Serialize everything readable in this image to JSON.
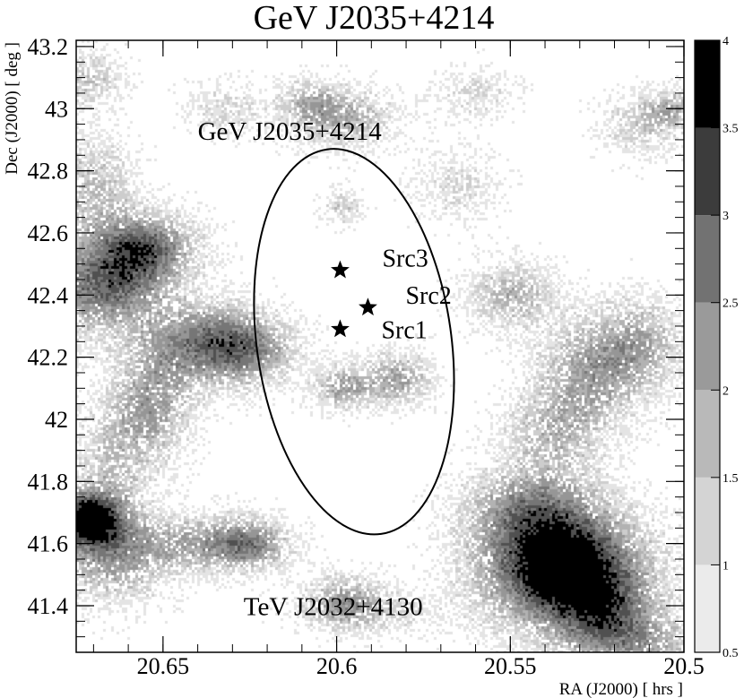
{
  "chart_data": {
    "type": "heatmap",
    "title": "GeV J2035+4214",
    "xlabel": "RA (J2000) [ hrs ]",
    "ylabel": "Dec (J2000) [ deg ]",
    "xlim": [
      20.675,
      20.5
    ],
    "ylim": [
      41.25,
      43.22
    ],
    "x_ticks": [
      {
        "value": 20.65,
        "label": "20.65"
      },
      {
        "value": 20.6,
        "label": "20.6"
      },
      {
        "value": 20.55,
        "label": "20.55"
      },
      {
        "value": 20.5,
        "label": "20.5"
      }
    ],
    "y_ticks": [
      {
        "value": 41.4,
        "label": "41.4"
      },
      {
        "value": 41.6,
        "label": "41.6"
      },
      {
        "value": 41.8,
        "label": "41.8"
      },
      {
        "value": 42.0,
        "label": "42"
      },
      {
        "value": 42.2,
        "label": "42.2"
      },
      {
        "value": 42.4,
        "label": "42.4"
      },
      {
        "value": 42.6,
        "label": "42.6"
      },
      {
        "value": 42.8,
        "label": "42.8"
      },
      {
        "value": 43.0,
        "label": "43"
      },
      {
        "value": 43.2,
        "label": "43.2"
      }
    ],
    "colorbar": {
      "min": 0.5,
      "max": 4,
      "ticks": [
        {
          "value": 0.5,
          "label": "0.5"
        },
        {
          "value": 1,
          "label": "1"
        },
        {
          "value": 1.5,
          "label": "1.5"
        },
        {
          "value": 2,
          "label": "2"
        },
        {
          "value": 2.5,
          "label": "2.5"
        },
        {
          "value": 3,
          "label": "3"
        },
        {
          "value": 3.5,
          "label": "3.5"
        },
        {
          "value": 4,
          "label": "4"
        }
      ]
    },
    "blobs": [
      {
        "ra": 20.535,
        "dec": 41.52,
        "sra": 0.016,
        "sdec": 0.13,
        "amp": 4.5
      },
      {
        "ra": 20.545,
        "dec": 41.72,
        "sra": 0.013,
        "sdec": 0.09,
        "amp": 1.8
      },
      {
        "ra": 20.522,
        "dec": 41.38,
        "sra": 0.01,
        "sdec": 0.08,
        "amp": 1.6
      },
      {
        "ra": 20.513,
        "dec": 41.28,
        "sra": 0.014,
        "sdec": 0.06,
        "amp": 1.6
      },
      {
        "ra": 20.527,
        "dec": 42.15,
        "sra": 0.011,
        "sdec": 0.12,
        "amp": 1.9
      },
      {
        "ra": 20.512,
        "dec": 42.25,
        "sra": 0.009,
        "sdec": 0.1,
        "amp": 1.5
      },
      {
        "ra": 20.538,
        "dec": 41.95,
        "sra": 0.01,
        "sdec": 0.09,
        "amp": 1.4
      },
      {
        "ra": 20.672,
        "dec": 41.68,
        "sra": 0.007,
        "sdec": 0.06,
        "amp": 3.6
      },
      {
        "ra": 20.665,
        "dec": 41.55,
        "sra": 0.012,
        "sdec": 0.1,
        "amp": 1.8
      },
      {
        "ra": 20.665,
        "dec": 41.85,
        "sra": 0.008,
        "sdec": 0.15,
        "amp": 1.3
      },
      {
        "ra": 20.668,
        "dec": 42.42,
        "sra": 0.012,
        "sdec": 0.1,
        "amp": 2.6
      },
      {
        "ra": 20.655,
        "dec": 42.55,
        "sra": 0.01,
        "sdec": 0.08,
        "amp": 2.8
      },
      {
        "ra": 20.67,
        "dec": 42.75,
        "sra": 0.008,
        "sdec": 0.12,
        "amp": 1.5
      },
      {
        "ra": 20.672,
        "dec": 43.1,
        "sra": 0.007,
        "sdec": 0.06,
        "amp": 1.4
      },
      {
        "ra": 20.653,
        "dec": 42.05,
        "sra": 0.008,
        "sdec": 0.12,
        "amp": 1.9
      },
      {
        "ra": 20.638,
        "dec": 42.25,
        "sra": 0.012,
        "sdec": 0.09,
        "amp": 2.3
      },
      {
        "ra": 20.625,
        "dec": 42.22,
        "sra": 0.01,
        "sdec": 0.08,
        "amp": 1.7
      },
      {
        "ra": 20.64,
        "dec": 41.6,
        "sra": 0.013,
        "sdec": 0.06,
        "amp": 1.6
      },
      {
        "ra": 20.625,
        "dec": 41.6,
        "sra": 0.008,
        "sdec": 0.06,
        "amp": 2.0
      },
      {
        "ra": 20.598,
        "dec": 41.42,
        "sra": 0.008,
        "sdec": 0.06,
        "amp": 1.6
      },
      {
        "ra": 20.598,
        "dec": 42.1,
        "sra": 0.006,
        "sdec": 0.05,
        "amp": 1.9
      },
      {
        "ra": 20.582,
        "dec": 42.13,
        "sra": 0.007,
        "sdec": 0.06,
        "amp": 1.9
      },
      {
        "ra": 20.598,
        "dec": 42.97,
        "sra": 0.01,
        "sdec": 0.07,
        "amp": 1.7
      },
      {
        "ra": 20.608,
        "dec": 43.02,
        "sra": 0.006,
        "sdec": 0.05,
        "amp": 1.2
      },
      {
        "ra": 20.55,
        "dec": 42.4,
        "sra": 0.009,
        "sdec": 0.07,
        "amp": 1.7
      },
      {
        "ra": 20.512,
        "dec": 42.95,
        "sra": 0.008,
        "sdec": 0.07,
        "amp": 1.3
      },
      {
        "ra": 20.503,
        "dec": 43.0,
        "sra": 0.005,
        "sdec": 0.04,
        "amp": 1.4
      },
      {
        "ra": 20.598,
        "dec": 42.68,
        "sra": 0.004,
        "sdec": 0.04,
        "amp": 1.3
      },
      {
        "ra": 20.59,
        "dec": 41.38,
        "sra": 0.014,
        "sdec": 0.05,
        "amp": 1.0
      },
      {
        "ra": 20.632,
        "dec": 43.0,
        "sra": 0.008,
        "sdec": 0.06,
        "amp": 1.0
      },
      {
        "ra": 20.565,
        "dec": 42.75,
        "sra": 0.009,
        "sdec": 0.08,
        "amp": 0.9
      },
      {
        "ra": 20.56,
        "dec": 43.05,
        "sra": 0.008,
        "sdec": 0.06,
        "amp": 0.9
      }
    ],
    "region_ellipse": {
      "label": "GeV J2035+4214",
      "center_ra": 20.595,
      "center_dec": 42.25,
      "semi_ra": 0.028,
      "semi_dec": 0.625
    },
    "sources": [
      {
        "name": "Src1",
        "ra": 20.599,
        "dec": 42.29
      },
      {
        "name": "Src2",
        "ra": 20.591,
        "dec": 42.36
      },
      {
        "name": "Src3",
        "ra": 20.599,
        "dec": 42.48
      }
    ],
    "annotations": [
      {
        "text": "TeV J2032+4130",
        "ra": 20.601,
        "dec": 41.37
      }
    ]
  }
}
